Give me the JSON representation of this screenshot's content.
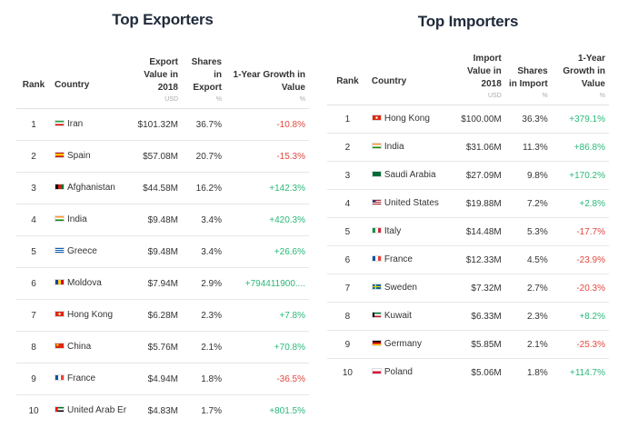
{
  "exporters": {
    "title": "Top Exporters",
    "headers": {
      "rank": "Rank",
      "country": "Country",
      "value": "Export Value in 2018",
      "value_unit": "USD",
      "share": "Shares in Export",
      "share_unit": "%",
      "growth": "1-Year Growth in Value",
      "growth_unit": "%"
    },
    "rows": [
      {
        "rank": "1",
        "country": "Iran",
        "value": "$101.32M",
        "share": "36.7%",
        "growth": "-10.8%",
        "trend": "neg"
      },
      {
        "rank": "2",
        "country": "Spain",
        "value": "$57.08M",
        "share": "20.7%",
        "growth": "-15.3%",
        "trend": "neg"
      },
      {
        "rank": "3",
        "country": "Afghanistan",
        "value": "$44.58M",
        "share": "16.2%",
        "growth": "+142.3%",
        "trend": "pos"
      },
      {
        "rank": "4",
        "country": "India",
        "value": "$9.48M",
        "share": "3.4%",
        "growth": "+420.3%",
        "trend": "pos"
      },
      {
        "rank": "5",
        "country": "Greece",
        "value": "$9.48M",
        "share": "3.4%",
        "growth": "+26.6%",
        "trend": "pos"
      },
      {
        "rank": "6",
        "country": "Moldova",
        "value": "$7.94M",
        "share": "2.9%",
        "growth": "+794411900....",
        "trend": "pos"
      },
      {
        "rank": "7",
        "country": "Hong Kong",
        "value": "$6.28M",
        "share": "2.3%",
        "growth": "+7.8%",
        "trend": "pos"
      },
      {
        "rank": "8",
        "country": "China",
        "value": "$5.76M",
        "share": "2.1%",
        "growth": "+70.8%",
        "trend": "pos"
      },
      {
        "rank": "9",
        "country": "France",
        "value": "$4.94M",
        "share": "1.8%",
        "growth": "-36.5%",
        "trend": "neg"
      },
      {
        "rank": "10",
        "country": "United Arab Er",
        "value": "$4.83M",
        "share": "1.7%",
        "growth": "+801.5%",
        "trend": "pos"
      }
    ]
  },
  "importers": {
    "title": "Top Importers",
    "headers": {
      "rank": "Rank",
      "country": "Country",
      "value": "Import Value in 2018",
      "value_unit": "USD",
      "share": "Shares in Import",
      "share_unit": "%",
      "growth": "1-Year Growth in Value",
      "growth_unit": "%"
    },
    "rows": [
      {
        "rank": "1",
        "country": "Hong Kong",
        "value": "$100.00M",
        "share": "36.3%",
        "growth": "+379.1%",
        "trend": "pos"
      },
      {
        "rank": "2",
        "country": "India",
        "value": "$31.06M",
        "share": "11.3%",
        "growth": "+86.8%",
        "trend": "pos"
      },
      {
        "rank": "3",
        "country": "Saudi Arabia",
        "value": "$27.09M",
        "share": "9.8%",
        "growth": "+170.2%",
        "trend": "pos"
      },
      {
        "rank": "4",
        "country": "United States",
        "value": "$19.88M",
        "share": "7.2%",
        "growth": "+2.8%",
        "trend": "pos"
      },
      {
        "rank": "5",
        "country": "Italy",
        "value": "$14.48M",
        "share": "5.3%",
        "growth": "-17.7%",
        "trend": "neg"
      },
      {
        "rank": "6",
        "country": "France",
        "value": "$12.33M",
        "share": "4.5%",
        "growth": "-23.9%",
        "trend": "neg"
      },
      {
        "rank": "7",
        "country": "Sweden",
        "value": "$7.32M",
        "share": "2.7%",
        "growth": "-20.3%",
        "trend": "neg"
      },
      {
        "rank": "8",
        "country": "Kuwait",
        "value": "$6.33M",
        "share": "2.3%",
        "growth": "+8.2%",
        "trend": "pos"
      },
      {
        "rank": "9",
        "country": "Germany",
        "value": "$5.85M",
        "share": "2.1%",
        "growth": "-25.3%",
        "trend": "neg"
      },
      {
        "rank": "10",
        "country": "Poland",
        "value": "$5.06M",
        "share": "1.8%",
        "growth": "+114.7%",
        "trend": "pos"
      }
    ]
  },
  "colors": {
    "positive": "#2ab87a",
    "negative": "#e0483e"
  }
}
